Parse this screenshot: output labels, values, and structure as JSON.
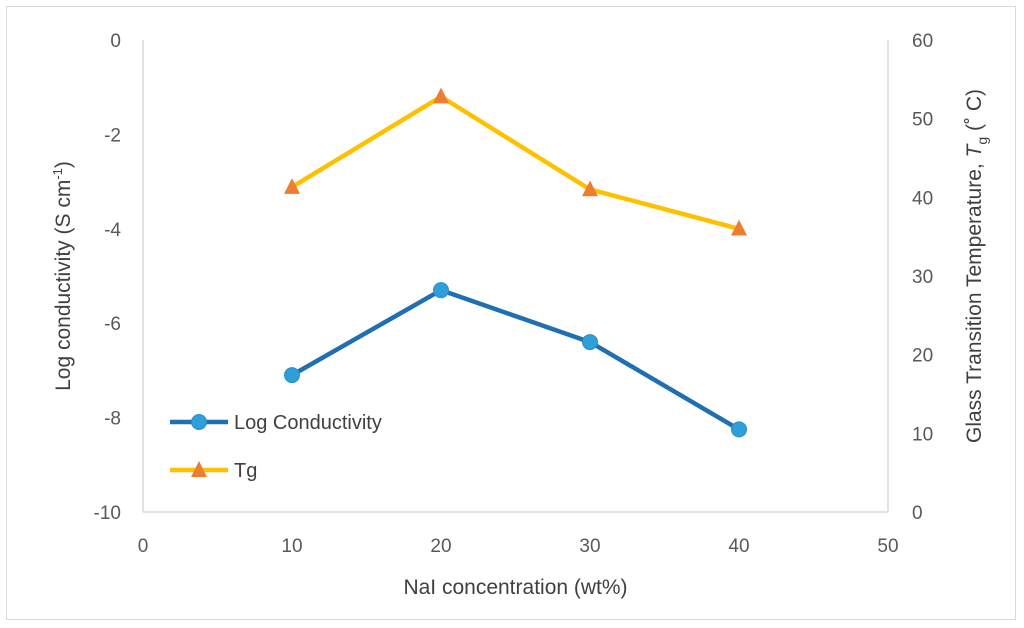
{
  "chart_data": {
    "type": "line",
    "title": "",
    "xlabel": "NaI concentration (wt%)",
    "ylabel": "Log conductivity (S cm⁻¹)",
    "ylabel_main": "Log conductivity (S cm",
    "ylabel_sup": "-1",
    "ylabel_end": ")",
    "y2label_main": "Glass Transition Temperature, ",
    "y2label_T": "T",
    "y2label_sub": "g",
    "y2label_end": " (˚ C)",
    "xlim": [
      0,
      50
    ],
    "xticks": [
      "0",
      "10",
      "20",
      "30",
      "40",
      "50"
    ],
    "xtick_values": [
      0,
      10,
      20,
      30,
      40,
      50
    ],
    "ylim": [
      -10,
      0
    ],
    "yticks": [
      "0",
      "-2",
      "-4",
      "-6",
      "-8",
      "-10"
    ],
    "ytick_values": [
      0,
      -2,
      -4,
      -6,
      -8,
      -10
    ],
    "y2lim": [
      0,
      60
    ],
    "y2ticks": [
      "60",
      "50",
      "40",
      "30",
      "20",
      "10",
      "0"
    ],
    "y2tick_values": [
      60,
      50,
      40,
      30,
      20,
      10,
      0
    ],
    "x": [
      10,
      20,
      30,
      40
    ],
    "series": [
      {
        "name": "Log Conductivity",
        "axis": "left",
        "values": [
          -7.1,
          -5.3,
          -6.4,
          -8.25
        ],
        "color": "#1f6fb2",
        "marker": "circle",
        "marker_color": "#2e9fd8"
      },
      {
        "name": "Tg",
        "axis": "right",
        "values": [
          41.3,
          52.8,
          41.0,
          36.0
        ],
        "color": "#ffc000",
        "marker": "triangle",
        "marker_color": "#ed7d31"
      }
    ],
    "legend_position": "lower-left",
    "grid": false
  }
}
